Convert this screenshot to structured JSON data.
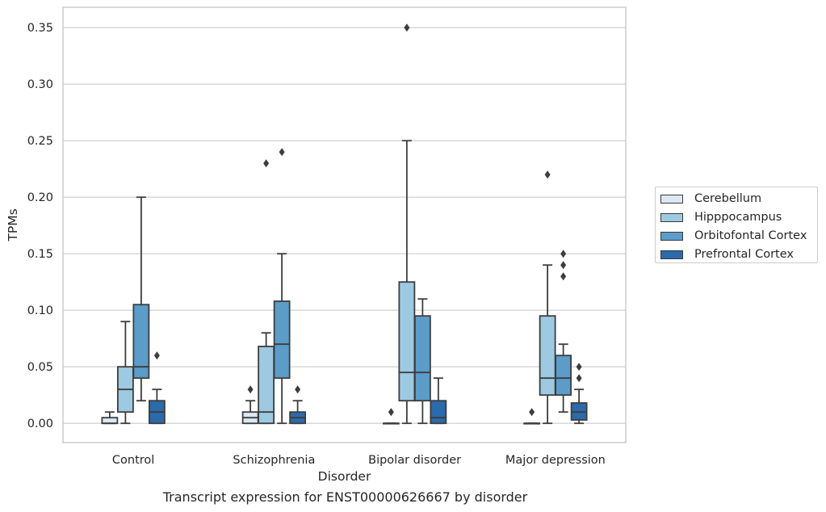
{
  "caption": "Transcript expression for ENST00000626667 by disorder",
  "chart_data": {
    "type": "box",
    "xlabel": "Disorder",
    "ylabel": "TPMs",
    "ylim": [
      -0.017,
      0.368
    ],
    "yticks": [
      0.0,
      0.05,
      0.1,
      0.15,
      0.2,
      0.25,
      0.3,
      0.35
    ],
    "ytick_labels": [
      "0.00",
      "0.05",
      "0.10",
      "0.15",
      "0.20",
      "0.25",
      "0.30",
      "0.35"
    ],
    "grid": "horizontal",
    "legend_position": "right",
    "categories": [
      "Control",
      "Schizophrenia",
      "Bipolar disorder",
      "Major depression"
    ],
    "series": [
      {
        "name": "Cerebellum",
        "color": "#dbe8f4",
        "boxes": [
          {
            "q1": 0.0,
            "median": 0.0,
            "q3": 0.005,
            "whislo": 0.0,
            "whishi": 0.01,
            "fliers": []
          },
          {
            "q1": 0.0,
            "median": 0.005,
            "q3": 0.01,
            "whislo": 0.0,
            "whishi": 0.02,
            "fliers": [
              0.03
            ]
          },
          {
            "q1": 0.0,
            "median": 0.0,
            "q3": 0.0,
            "whislo": 0.0,
            "whishi": 0.0,
            "fliers": [
              0.01
            ]
          },
          {
            "q1": 0.0,
            "median": 0.0,
            "q3": 0.0,
            "whislo": 0.0,
            "whishi": 0.0,
            "fliers": [
              0.01
            ]
          }
        ]
      },
      {
        "name": "Hipppocampus",
        "color": "#9ecae1",
        "boxes": [
          {
            "q1": 0.01,
            "median": 0.03,
            "q3": 0.05,
            "whislo": 0.0,
            "whishi": 0.09,
            "fliers": []
          },
          {
            "q1": 0.0,
            "median": 0.01,
            "q3": 0.068,
            "whislo": 0.0,
            "whishi": 0.08,
            "fliers": [
              0.23
            ]
          },
          {
            "q1": 0.02,
            "median": 0.045,
            "q3": 0.125,
            "whislo": 0.0,
            "whishi": 0.25,
            "fliers": [
              0.35
            ]
          },
          {
            "q1": 0.025,
            "median": 0.04,
            "q3": 0.095,
            "whislo": 0.0,
            "whishi": 0.14,
            "fliers": [
              0.22
            ]
          }
        ]
      },
      {
        "name": "Orbitofontal Cortex",
        "color": "#5b9cc9",
        "boxes": [
          {
            "q1": 0.04,
            "median": 0.05,
            "q3": 0.105,
            "whislo": 0.02,
            "whishi": 0.2,
            "fliers": []
          },
          {
            "q1": 0.04,
            "median": 0.07,
            "q3": 0.108,
            "whislo": 0.0,
            "whishi": 0.15,
            "fliers": [
              0.24
            ]
          },
          {
            "q1": 0.02,
            "median": 0.045,
            "q3": 0.095,
            "whislo": 0.0,
            "whishi": 0.11,
            "fliers": []
          },
          {
            "q1": 0.025,
            "median": 0.04,
            "q3": 0.06,
            "whislo": 0.01,
            "whishi": 0.07,
            "fliers": [
              0.13,
              0.14,
              0.15
            ]
          }
        ]
      },
      {
        "name": "Prefrontal Cortex",
        "color": "#2b6aab",
        "boxes": [
          {
            "q1": 0.0,
            "median": 0.01,
            "q3": 0.02,
            "whislo": 0.0,
            "whishi": 0.03,
            "fliers": [
              0.06
            ]
          },
          {
            "q1": 0.0,
            "median": 0.005,
            "q3": 0.01,
            "whislo": 0.0,
            "whishi": 0.02,
            "fliers": [
              0.03
            ]
          },
          {
            "q1": 0.0,
            "median": 0.005,
            "q3": 0.02,
            "whislo": 0.0,
            "whishi": 0.04,
            "fliers": []
          },
          {
            "q1": 0.003,
            "median": 0.01,
            "q3": 0.018,
            "whislo": 0.0,
            "whishi": 0.03,
            "fliers": [
              0.04,
              0.05
            ]
          }
        ]
      }
    ]
  }
}
